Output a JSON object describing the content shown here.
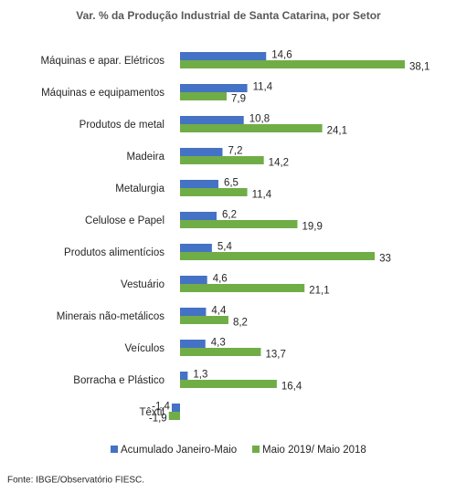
{
  "chart_data": {
    "type": "hbar",
    "title": "Var. % da Produção Industrial de Santa Catarina, por Setor",
    "categories": [
      "Máquinas e apar. Elétricos",
      "Máquinas e equipamentos",
      "Produtos de metal",
      "Madeira",
      "Metalurgia",
      "Celulose e Papel",
      "Produtos alimentícios",
      "Vestuário",
      "Minerais não-metálicos",
      "Veículos",
      "Borracha e Plástico",
      "Têxtil"
    ],
    "series": [
      {
        "name": "Acumulado Janeiro-Maio",
        "color": "#4472c4",
        "values": [
          14.6,
          11.4,
          10.8,
          7.2,
          6.5,
          6.2,
          5.4,
          4.6,
          4.4,
          4.3,
          1.3,
          -1.4
        ],
        "value_labels": [
          "14,6",
          "11,4",
          "10,8",
          "7,2",
          "6,5",
          "6,2",
          "5,4",
          "4,6",
          "4,4",
          "4,3",
          "1,3",
          "-1,4"
        ]
      },
      {
        "name": "Maio 2019/ Maio 2018",
        "color": "#70ad47",
        "values": [
          38.1,
          7.9,
          24.1,
          14.2,
          11.4,
          19.9,
          33,
          21.1,
          8.2,
          13.7,
          16.4,
          -1.9
        ],
        "value_labels": [
          "38,1",
          "7,9",
          "24,1",
          "14,2",
          "11,4",
          "19,9",
          "33",
          "21,1",
          "8,2",
          "13,7",
          "16,4",
          "-1,9"
        ]
      }
    ],
    "legend": "bottom",
    "source": "Fonte: IBGE/Observatório FIESC."
  }
}
